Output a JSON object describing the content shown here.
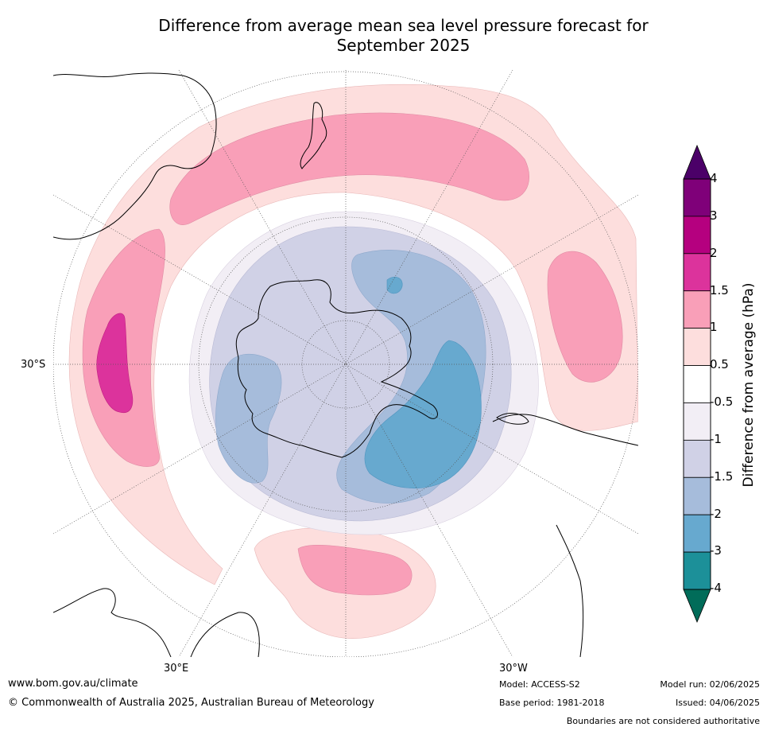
{
  "title_line1": "Difference from average mean sea level pressure forecast for",
  "title_line2": "September 2025",
  "colorbar": {
    "title": "Difference from average (hPa)",
    "tick_labels": [
      "4",
      "3",
      "2",
      "1.5",
      "1",
      "0.5",
      "-0.5",
      "-1",
      "-1.5",
      "-2",
      "-3",
      "-4"
    ],
    "colors": [
      "#4b0068",
      "#7f0079",
      "#b5007f",
      "#dc339c",
      "#f99fb8",
      "#fddedd",
      "#ffffff",
      "#f2eef5",
      "#d0d1e6",
      "#a6bcdb",
      "#67a9cf",
      "#1c9099",
      "#016c59"
    ]
  },
  "map": {
    "lat_label": "30°S",
    "lon_label_left": "30°E",
    "lon_label_right": "30°W"
  },
  "footer": {
    "url": "www.bom.gov.au/climate",
    "copyright": "© Commonwealth of Australia 2025, Australian Bureau of Meteorology",
    "model": "Model: ACCESS-S2",
    "base_period": "Base period: 1981-2018",
    "model_run": "Model run: 02/06/2025",
    "issued": "Issued: 04/06/2025",
    "disclaimer": "Boundaries are not considered authoritative"
  }
}
